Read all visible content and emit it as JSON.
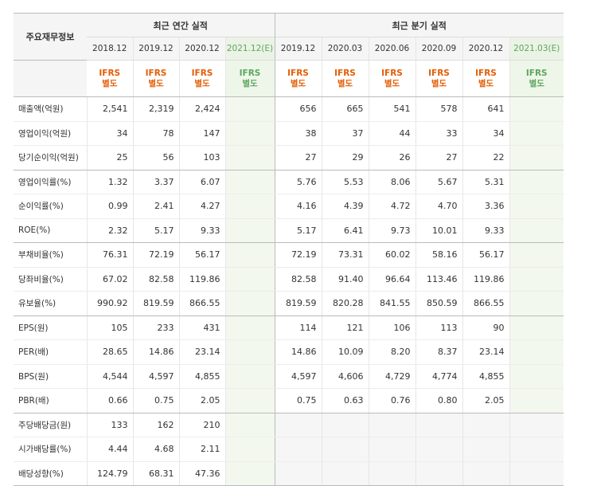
{
  "table": {
    "corner_label": "주요재무정보",
    "annual_title": "최근 연간 실적",
    "quarter_title": "최근 분기 실적",
    "annual_periods": [
      "2018.12",
      "2019.12",
      "2020.12",
      "2021.12(E)"
    ],
    "quarter_periods": [
      "2019.12",
      "2020.03",
      "2020.06",
      "2020.09",
      "2020.12",
      "2021.03(E)"
    ],
    "standard_line1": "IFRS",
    "standard_line2": "별도",
    "rows": [
      {
        "label": "매출액(억원)",
        "annual": [
          "2,541",
          "2,319",
          "2,424",
          ""
        ],
        "quarter": [
          "656",
          "665",
          "541",
          "578",
          "641",
          ""
        ]
      },
      {
        "label": "영업이익(억원)",
        "annual": [
          "34",
          "78",
          "147",
          ""
        ],
        "quarter": [
          "38",
          "37",
          "44",
          "33",
          "34",
          ""
        ]
      },
      {
        "label": "당기순이익(억원)",
        "annual": [
          "25",
          "56",
          "103",
          ""
        ],
        "quarter": [
          "27",
          "29",
          "26",
          "27",
          "22",
          ""
        ]
      },
      {
        "label": "영업이익률(%)",
        "annual": [
          "1.32",
          "3.37",
          "6.07",
          ""
        ],
        "quarter": [
          "5.76",
          "5.53",
          "8.06",
          "5.67",
          "5.31",
          ""
        ]
      },
      {
        "label": "순이익률(%)",
        "annual": [
          "0.99",
          "2.41",
          "4.27",
          ""
        ],
        "quarter": [
          "4.16",
          "4.39",
          "4.72",
          "4.70",
          "3.36",
          ""
        ]
      },
      {
        "label": "ROE(%)",
        "annual": [
          "2.32",
          "5.17",
          "9.33",
          ""
        ],
        "quarter": [
          "5.17",
          "6.41",
          "9.73",
          "10.01",
          "9.33",
          ""
        ]
      },
      {
        "label": "부채비율(%)",
        "annual": [
          "76.31",
          "72.19",
          "56.17",
          ""
        ],
        "quarter": [
          "72.19",
          "73.31",
          "60.02",
          "58.16",
          "56.17",
          ""
        ]
      },
      {
        "label": "당좌비율(%)",
        "annual": [
          "67.02",
          "82.58",
          "119.86",
          ""
        ],
        "quarter": [
          "82.58",
          "91.40",
          "96.64",
          "113.46",
          "119.86",
          ""
        ]
      },
      {
        "label": "유보율(%)",
        "annual": [
          "990.92",
          "819.59",
          "866.55",
          ""
        ],
        "quarter": [
          "819.59",
          "820.28",
          "841.55",
          "850.59",
          "866.55",
          ""
        ]
      },
      {
        "label": "EPS(원)",
        "annual": [
          "105",
          "233",
          "431",
          ""
        ],
        "quarter": [
          "114",
          "121",
          "106",
          "113",
          "90",
          ""
        ]
      },
      {
        "label": "PER(배)",
        "annual": [
          "28.65",
          "14.86",
          "23.14",
          ""
        ],
        "quarter": [
          "14.86",
          "10.09",
          "8.20",
          "8.37",
          "23.14",
          ""
        ]
      },
      {
        "label": "BPS(원)",
        "annual": [
          "4,544",
          "4,597",
          "4,855",
          ""
        ],
        "quarter": [
          "4,597",
          "4,606",
          "4,729",
          "4,774",
          "4,855",
          ""
        ]
      },
      {
        "label": "PBR(배)",
        "annual": [
          "0.66",
          "0.75",
          "2.05",
          ""
        ],
        "quarter": [
          "0.75",
          "0.63",
          "0.76",
          "0.80",
          "2.05",
          ""
        ]
      },
      {
        "label": "주당배당금(원)",
        "annual": [
          "133",
          "162",
          "210",
          ""
        ],
        "quarter": null
      },
      {
        "label": "시가배당률(%)",
        "annual": [
          "4.44",
          "4.68",
          "2.11",
          ""
        ],
        "quarter": null
      },
      {
        "label": "배당성향(%)",
        "annual": [
          "124.79",
          "68.31",
          "47.36",
          ""
        ],
        "quarter": null
      }
    ]
  },
  "colors": {
    "ifrs_orange": "#e35e05",
    "estimate_green": "#5ea65e",
    "header_bg": "#f5f5f5",
    "estimate_bg": "#f3f8ef"
  }
}
